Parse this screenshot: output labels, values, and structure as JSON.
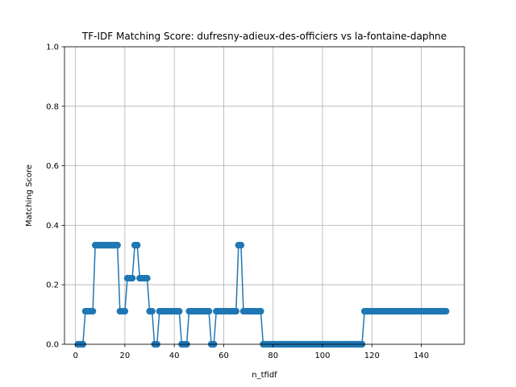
{
  "chart_data": {
    "type": "line",
    "title": "TF-IDF Matching Score: dufresny-adieux-des-officiers vs la-fontaine-daphne",
    "xlabel": "n_tfidf",
    "ylabel": "Matching Score",
    "xlim": [
      -4.45,
      157.45
    ],
    "ylim": [
      0,
      1
    ],
    "xticks": [
      0,
      20,
      40,
      60,
      80,
      100,
      120,
      140
    ],
    "yticks": [
      0.0,
      0.2,
      0.4,
      0.6,
      0.8,
      1.0
    ],
    "ytick_labels": [
      "0.0",
      "0.2",
      "0.4",
      "0.6",
      "0.8",
      "1.0"
    ],
    "grid": true,
    "series": [
      {
        "color": "#1f77b4",
        "marker": "circle",
        "x": [
          1,
          2,
          3,
          4,
          5,
          6,
          7,
          8,
          9,
          10,
          11,
          12,
          13,
          14,
          15,
          16,
          17,
          18,
          19,
          20,
          21,
          22,
          23,
          24,
          25,
          26,
          27,
          28,
          29,
          30,
          31,
          32,
          33,
          34,
          35,
          36,
          37,
          38,
          39,
          40,
          41,
          42,
          43,
          44,
          45,
          46,
          47,
          48,
          49,
          50,
          51,
          52,
          53,
          54,
          55,
          56,
          57,
          58,
          59,
          60,
          61,
          62,
          63,
          64,
          65,
          66,
          67,
          68,
          69,
          70,
          71,
          72,
          73,
          74,
          75,
          76,
          77,
          78,
          79,
          80,
          81,
          82,
          83,
          84,
          85,
          86,
          87,
          88,
          89,
          90,
          91,
          92,
          93,
          94,
          95,
          96,
          97,
          98,
          99,
          100,
          101,
          102,
          103,
          104,
          105,
          106,
          107,
          108,
          109,
          110,
          111,
          112,
          113,
          114,
          115,
          116,
          117,
          118,
          119,
          120,
          121,
          122,
          123,
          124,
          125,
          126,
          127,
          128,
          129,
          130,
          131,
          132,
          133,
          134,
          135,
          136,
          137,
          138,
          139,
          140,
          141,
          142,
          143,
          144,
          145,
          146,
          147,
          148,
          149,
          150
        ],
        "y": [
          0,
          0,
          0,
          0.111,
          0.111,
          0.111,
          0.111,
          0.333,
          0.333,
          0.333,
          0.333,
          0.333,
          0.333,
          0.333,
          0.333,
          0.333,
          0.333,
          0.111,
          0.111,
          0.111,
          0.222,
          0.222,
          0.222,
          0.333,
          0.333,
          0.222,
          0.222,
          0.222,
          0.222,
          0.111,
          0.111,
          0,
          0,
          0.111,
          0.111,
          0.111,
          0.111,
          0.111,
          0.111,
          0.111,
          0.111,
          0.111,
          0,
          0,
          0,
          0.111,
          0.111,
          0.111,
          0.111,
          0.111,
          0.111,
          0.111,
          0.111,
          0.111,
          0,
          0,
          0.111,
          0.111,
          0.111,
          0.111,
          0.111,
          0.111,
          0.111,
          0.111,
          0.111,
          0.333,
          0.333,
          0.111,
          0.111,
          0.111,
          0.111,
          0.111,
          0.111,
          0.111,
          0.111,
          0,
          0,
          0,
          0,
          0,
          0,
          0,
          0,
          0,
          0,
          0,
          0,
          0,
          0,
          0,
          0,
          0,
          0,
          0,
          0,
          0,
          0,
          0,
          0,
          0,
          0,
          0,
          0,
          0,
          0,
          0,
          0,
          0,
          0,
          0,
          0,
          0,
          0,
          0,
          0,
          0,
          0.111,
          0.111,
          0.111,
          0.111,
          0.111,
          0.111,
          0.111,
          0.111,
          0.111,
          0.111,
          0.111,
          0.111,
          0.111,
          0.111,
          0.111,
          0.111,
          0.111,
          0.111,
          0.111,
          0.111,
          0.111,
          0.111,
          0.111,
          0.111,
          0.111,
          0.111,
          0.111,
          0.111,
          0.111,
          0.111,
          0.111,
          0.111,
          0.111,
          0.111
        ]
      }
    ]
  }
}
